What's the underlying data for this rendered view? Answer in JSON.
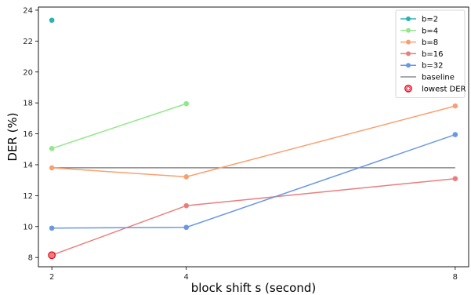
{
  "chart_data": {
    "type": "line",
    "xlabel": "block shift s (second)",
    "ylabel": "DER (%)",
    "xlim": [
      1.8,
      8.2
    ],
    "ylim": [
      7.4,
      24.2
    ],
    "xticks": [
      2,
      4,
      8
    ],
    "yticks": [
      8,
      10,
      12,
      14,
      16,
      18,
      20,
      22,
      24
    ],
    "grid": false,
    "legend_position": "top-right",
    "series": [
      {
        "name": "b=2",
        "color": "#2ab3ae",
        "x": [
          2
        ],
        "y": [
          23.35
        ]
      },
      {
        "name": "b=4",
        "color": "#90e88a",
        "x": [
          2,
          4
        ],
        "y": [
          15.05,
          17.95
        ]
      },
      {
        "name": "b=8",
        "color": "#f9a070",
        "x": [
          2,
          4,
          8
        ],
        "y": [
          13.8,
          13.22,
          17.8
        ]
      },
      {
        "name": "b=16",
        "color": "#ea7e7d",
        "x": [
          2,
          4,
          8
        ],
        "y": [
          8.15,
          11.35,
          13.1
        ]
      },
      {
        "name": "b=32",
        "color": "#6a98e5",
        "x": [
          2,
          4,
          8
        ],
        "y": [
          9.9,
          9.95,
          15.95
        ]
      }
    ],
    "baseline": {
      "name": "baseline",
      "y": 13.8,
      "color": "#777777"
    },
    "lowest_der": {
      "name": "lowest DER",
      "x": 2,
      "y": 8.15,
      "color": "#e8001c"
    }
  }
}
